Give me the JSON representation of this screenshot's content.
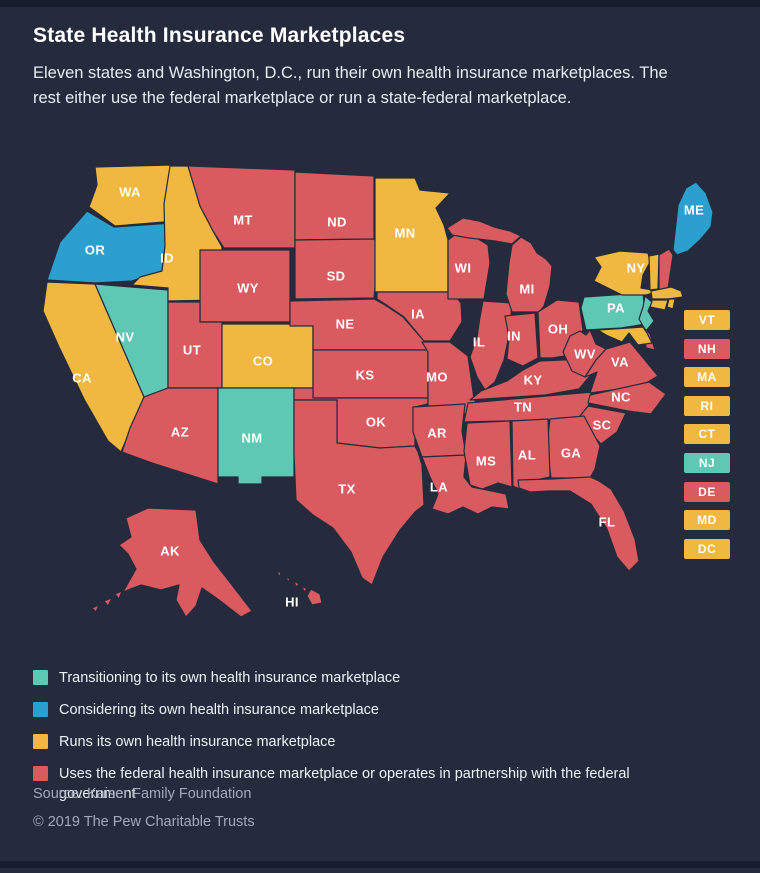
{
  "page": {
    "background": "#252B3D",
    "edge_strip_color": "#181D2D"
  },
  "header": {
    "title": "State Health Insurance Marketplaces",
    "subtitle": "Eleven states and Washington, D.C., run their own health insurance marketplaces. The rest either use the federal marketplace or run a state-federal marketplace."
  },
  "categories": {
    "transitioning": {
      "color": "#5FC8B4",
      "label": "Transitioning to its own health insurance marketplace"
    },
    "considering": {
      "color": "#2B9FCE",
      "label": "Considering its own health insurance marketplace"
    },
    "runs_own": {
      "color": "#F0B840",
      "label": "Runs its own health insurance marketplace"
    },
    "federal": {
      "color": "#D95B5F",
      "label": "Uses the federal health insurance marketplace or operates in partnership with the federal government"
    }
  },
  "legend_order": [
    "transitioning",
    "considering",
    "runs_own",
    "federal"
  ],
  "map": {
    "state_label_color": "#FFFFFF",
    "states": [
      {
        "code": "WA",
        "category": "runs_own"
      },
      {
        "code": "OR",
        "category": "considering"
      },
      {
        "code": "CA",
        "category": "runs_own"
      },
      {
        "code": "NV",
        "category": "transitioning"
      },
      {
        "code": "ID",
        "category": "runs_own"
      },
      {
        "code": "MT",
        "category": "federal"
      },
      {
        "code": "WY",
        "category": "federal"
      },
      {
        "code": "UT",
        "category": "federal"
      },
      {
        "code": "CO",
        "category": "runs_own"
      },
      {
        "code": "AZ",
        "category": "federal"
      },
      {
        "code": "NM",
        "category": "transitioning"
      },
      {
        "code": "ND",
        "category": "federal"
      },
      {
        "code": "SD",
        "category": "federal"
      },
      {
        "code": "NE",
        "category": "federal"
      },
      {
        "code": "KS",
        "category": "federal"
      },
      {
        "code": "OK",
        "category": "federal"
      },
      {
        "code": "TX",
        "category": "federal"
      },
      {
        "code": "MN",
        "category": "runs_own"
      },
      {
        "code": "IA",
        "category": "federal"
      },
      {
        "code": "MO",
        "category": "federal"
      },
      {
        "code": "AR",
        "category": "federal"
      },
      {
        "code": "LA",
        "category": "federal"
      },
      {
        "code": "WI",
        "category": "federal"
      },
      {
        "code": "IL",
        "category": "federal"
      },
      {
        "code": "IN",
        "category": "federal"
      },
      {
        "code": "MI",
        "category": "federal"
      },
      {
        "code": "OH",
        "category": "federal"
      },
      {
        "code": "KY",
        "category": "federal"
      },
      {
        "code": "TN",
        "category": "federal"
      },
      {
        "code": "WV",
        "category": "federal"
      },
      {
        "code": "VA",
        "category": "federal"
      },
      {
        "code": "NC",
        "category": "federal"
      },
      {
        "code": "SC",
        "category": "federal"
      },
      {
        "code": "GA",
        "category": "federal"
      },
      {
        "code": "AL",
        "category": "federal"
      },
      {
        "code": "MS",
        "category": "federal"
      },
      {
        "code": "FL",
        "category": "federal"
      },
      {
        "code": "PA",
        "category": "transitioning"
      },
      {
        "code": "NY",
        "category": "runs_own"
      },
      {
        "code": "ME",
        "category": "considering"
      },
      {
        "code": "VT",
        "category": "runs_own",
        "label_on_map": false
      },
      {
        "code": "NH",
        "category": "federal",
        "label_on_map": false
      },
      {
        "code": "MA",
        "category": "runs_own",
        "label_on_map": false
      },
      {
        "code": "RI",
        "category": "runs_own",
        "label_on_map": false
      },
      {
        "code": "CT",
        "category": "runs_own",
        "label_on_map": false
      },
      {
        "code": "NJ",
        "category": "transitioning",
        "label_on_map": false
      },
      {
        "code": "DE",
        "category": "federal",
        "label_on_map": false
      },
      {
        "code": "MD",
        "category": "runs_own",
        "label_on_map": false
      },
      {
        "code": "DC",
        "category": "runs_own",
        "label_on_map": false
      },
      {
        "code": "AK",
        "category": "federal"
      },
      {
        "code": "HI",
        "category": "federal"
      }
    ],
    "side_labels": [
      "VT",
      "NH",
      "MA",
      "RI",
      "CT",
      "NJ",
      "DE",
      "MD",
      "DC"
    ]
  },
  "footer": {
    "source": "Source: Kaiser Family Foundation",
    "copyright": "© 2019 The Pew Charitable Trusts"
  }
}
